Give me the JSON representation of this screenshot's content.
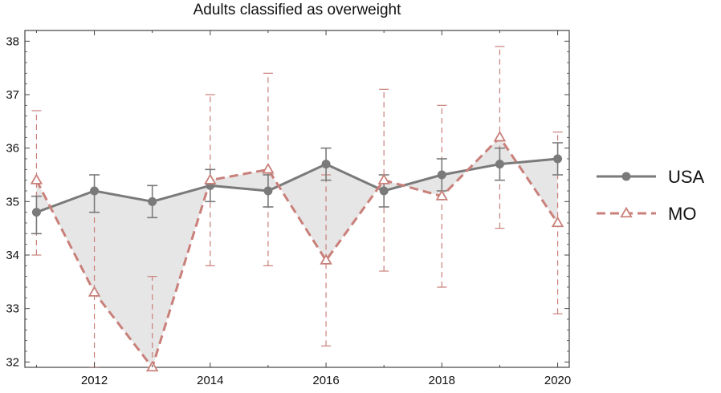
{
  "chart_data": {
    "type": "line",
    "title": "Adults classified as overweight",
    "xlabel": "",
    "ylabel": "",
    "xlim": [
      2010.8,
      2020.2
    ],
    "ylim": [
      31.9,
      38.2
    ],
    "xticks": [
      2012,
      2014,
      2016,
      2018,
      2020
    ],
    "yticks": [
      32,
      33,
      34,
      35,
      36,
      37,
      38
    ],
    "grid": false,
    "legend_position": "right",
    "fill_between_series": true,
    "series": [
      {
        "name": "USA",
        "color": "#7a7a7a",
        "marker": "circle",
        "line_style": "solid",
        "x": [
          2011,
          2012,
          2013,
          2014,
          2015,
          2016,
          2017,
          2018,
          2019,
          2020
        ],
        "y": [
          34.8,
          35.2,
          35.0,
          35.3,
          35.2,
          35.7,
          35.2,
          35.5,
          35.7,
          35.8
        ],
        "error_low": [
          34.4,
          34.8,
          34.7,
          35.0,
          34.9,
          35.4,
          34.9,
          35.2,
          35.4,
          35.5
        ],
        "error_high": [
          35.1,
          35.5,
          35.3,
          35.6,
          35.5,
          36.0,
          35.5,
          35.8,
          36.0,
          36.1
        ]
      },
      {
        "name": "MO",
        "color": "#c9807a",
        "marker": "triangle-open",
        "line_style": "dashed",
        "x": [
          2011,
          2012,
          2013,
          2014,
          2015,
          2016,
          2017,
          2018,
          2019,
          2020
        ],
        "y": [
          35.4,
          33.3,
          31.9,
          35.4,
          35.6,
          33.9,
          35.4,
          35.1,
          36.2,
          34.6
        ],
        "error_low": [
          34.0,
          31.9,
          31.9,
          33.8,
          33.8,
          32.3,
          33.7,
          33.4,
          34.5,
          32.9
        ],
        "error_high": [
          36.7,
          34.8,
          33.6,
          37.0,
          37.4,
          35.5,
          37.1,
          36.8,
          37.9,
          36.3
        ]
      }
    ]
  }
}
